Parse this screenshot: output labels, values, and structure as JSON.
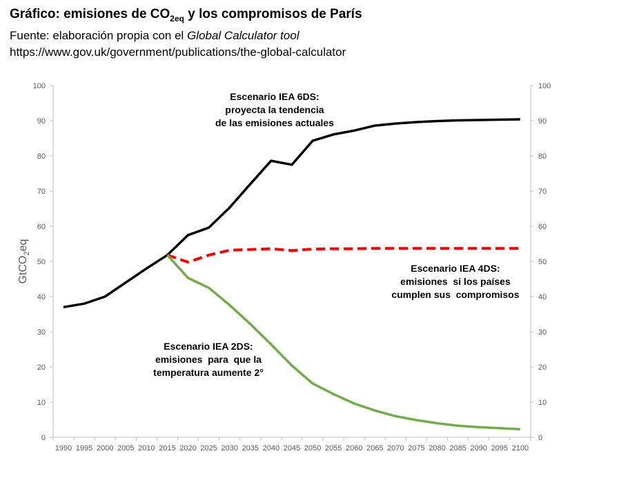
{
  "header": {
    "title_prefix": "Gráfico: emisiones de CO",
    "title_sub": "2eq",
    "title_suffix": " y los compromisos de París",
    "source_prefix": "Fuente: elaboración propia con el ",
    "source_tool": "Global Calculator tool",
    "url": "https://www.gov.uk/government/publications/the-global-calculator"
  },
  "chart_data": {
    "type": "line",
    "ylabel": "GtCO2eq",
    "ylabel_base": "GtCO",
    "ylabel_sub": "2",
    "ylabel_tail": "eq",
    "ylim": [
      0,
      100
    ],
    "y_ticks": [
      0,
      10,
      20,
      30,
      40,
      50,
      60,
      70,
      80,
      90,
      100
    ],
    "x": [
      1990,
      1995,
      2000,
      2005,
      2010,
      2015,
      2020,
      2025,
      2030,
      2035,
      2040,
      2045,
      2050,
      2055,
      2060,
      2065,
      2070,
      2075,
      2080,
      2085,
      2090,
      2095,
      2100
    ],
    "grid": false,
    "series": [
      {
        "color": "#000000",
        "style": "solid",
        "x": [
          1990,
          1995,
          2000,
          2005,
          2010,
          2015,
          2020,
          2025,
          2030,
          2035,
          2040,
          2045,
          2050,
          2055,
          2060,
          2065,
          2070,
          2075,
          2080,
          2085,
          2090,
          2095,
          2100
        ],
        "values": [
          37.0,
          38.0,
          40.0,
          44.0,
          48.0,
          51.8,
          57.5,
          59.6,
          65.3,
          72.0,
          78.6,
          77.5,
          84.3,
          86.1,
          87.2,
          88.6,
          89.2,
          89.6,
          89.9,
          90.1,
          90.2,
          90.3,
          90.4
        ]
      },
      {
        "color": "#ff0000",
        "style": "dashed",
        "x": [
          2015,
          2020,
          2025,
          2030,
          2035,
          2040,
          2045,
          2050,
          2055,
          2060,
          2065,
          2070,
          2075,
          2080,
          2085,
          2090,
          2095,
          2100
        ],
        "values": [
          51.8,
          49.8,
          51.8,
          53.2,
          53.4,
          53.6,
          53.1,
          53.5,
          53.6,
          53.6,
          53.7,
          53.7,
          53.7,
          53.7,
          53.7,
          53.7,
          53.7,
          53.7
        ]
      },
      {
        "color": "#70ad47",
        "style": "solid",
        "x": [
          2015,
          2020,
          2025,
          2030,
          2035,
          2040,
          2045,
          2050,
          2055,
          2060,
          2065,
          2070,
          2075,
          2080,
          2085,
          2090,
          2095,
          2100
        ],
        "values": [
          51.8,
          45.3,
          42.5,
          37.6,
          32.2,
          26.4,
          20.4,
          15.3,
          12.3,
          9.6,
          7.6,
          6.0,
          4.9,
          4.0,
          3.3,
          2.9,
          2.6,
          2.3
        ]
      }
    ],
    "annotations": [
      {
        "lines": [
          "Escenario IEA 6DS:",
          "proyecta la tendencia",
          "de las emisiones actuales"
        ]
      },
      {
        "lines": [
          "Escenario IEA 4DS:",
          "emisiones  si los países",
          "cumplen sus  compromisos"
        ]
      },
      {
        "lines": [
          "Escenario IEA 2DS:",
          "emisiones  para  que la",
          "temperatura aumente 2°"
        ]
      }
    ]
  }
}
